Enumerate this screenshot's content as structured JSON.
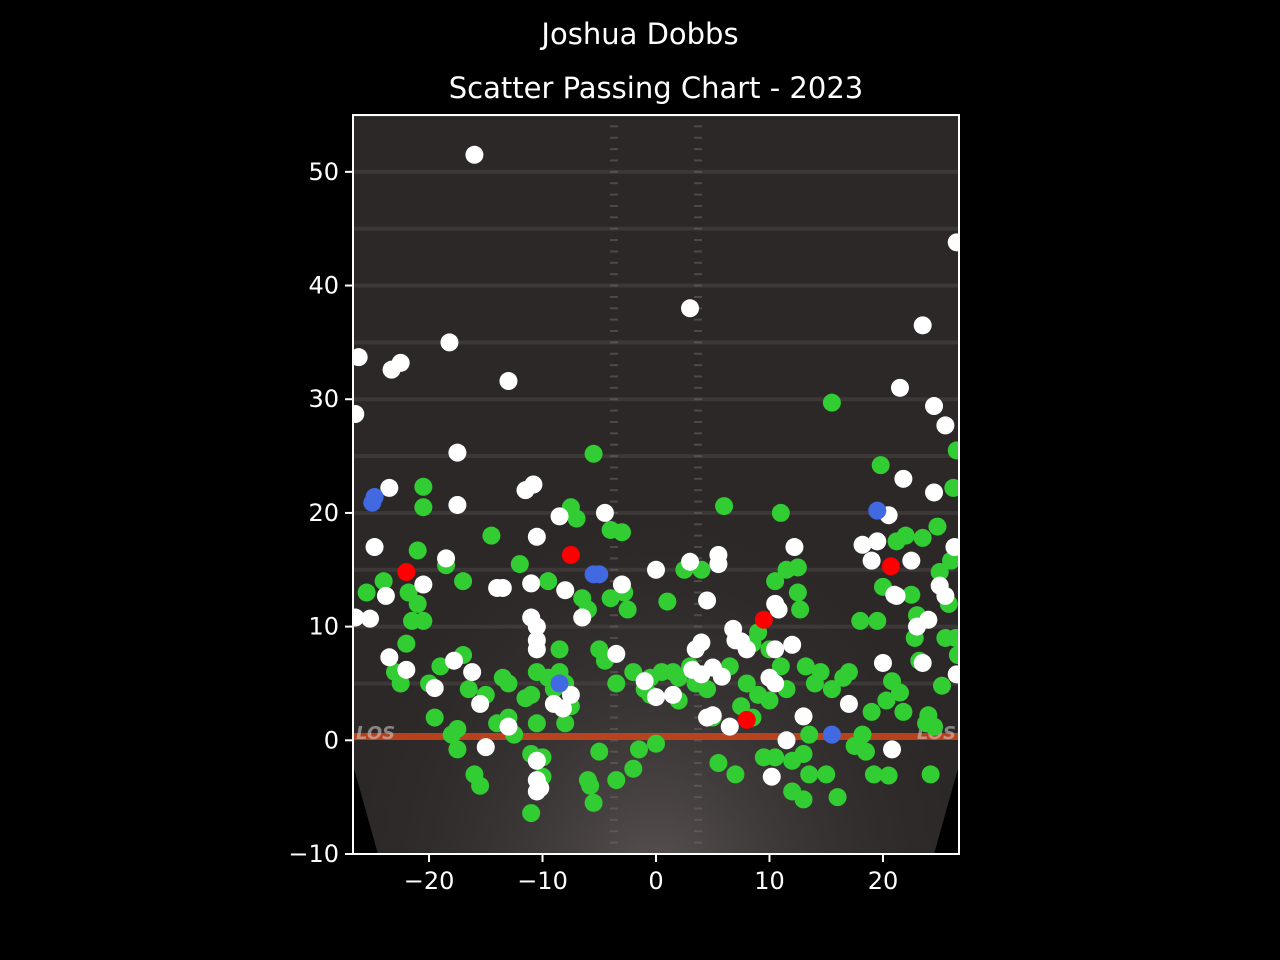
{
  "header": {
    "suptitle": "Joshua Dobbs",
    "title": "Scatter Passing Chart - 2023"
  },
  "chart_data": {
    "type": "scatter",
    "title": "Scatter Passing Chart - 2023",
    "xlabel": "",
    "ylabel": "",
    "xlim": [
      -26.7,
      26.7
    ],
    "ylim": [
      -10,
      55
    ],
    "x_ticks": [
      -20,
      -10,
      0,
      10,
      20
    ],
    "y_ticks": [
      -10,
      0,
      10,
      20,
      30,
      40,
      50
    ],
    "grid": false,
    "field_label": "LOS",
    "colors": {
      "complete": "#32cd32",
      "incomplete": "#ffffff",
      "touchdown": "#4169e1",
      "interception": "#ff0000",
      "background": "#000000",
      "field": "#2c2828",
      "los_line": "#d0451b"
    },
    "series": [
      {
        "key": "complete",
        "points": [
          [
            -25.5,
            13
          ],
          [
            -24,
            14
          ],
          [
            -23,
            6
          ],
          [
            -22.5,
            5
          ],
          [
            -22,
            8.5
          ],
          [
            -21.8,
            13
          ],
          [
            -21.5,
            10.5
          ],
          [
            -21,
            12
          ],
          [
            -21,
            16.7
          ],
          [
            -20.5,
            20.5
          ],
          [
            -20.5,
            22.3
          ],
          [
            -20.5,
            10.5
          ],
          [
            -20,
            5
          ],
          [
            -19.5,
            2
          ],
          [
            -19,
            6.5
          ],
          [
            -18.5,
            15.4
          ],
          [
            -18,
            0.5
          ],
          [
            -17.5,
            1
          ],
          [
            -17.5,
            -0.8
          ],
          [
            -17,
            14
          ],
          [
            -17,
            7.5
          ],
          [
            -16.5,
            4.5
          ],
          [
            -16,
            -3
          ],
          [
            -15.5,
            -4
          ],
          [
            -15,
            4
          ],
          [
            -14.5,
            18
          ],
          [
            -14,
            1.5
          ],
          [
            -13.5,
            5.5
          ],
          [
            -13,
            5
          ],
          [
            -13,
            2
          ],
          [
            -12.5,
            0.5
          ],
          [
            -12,
            15.5
          ],
          [
            -11.5,
            3.7
          ],
          [
            -11,
            -1.2
          ],
          [
            -11,
            -6.4
          ],
          [
            -11,
            4
          ],
          [
            -10.5,
            6
          ],
          [
            -10.5,
            1.5
          ],
          [
            -10,
            -1.5
          ],
          [
            -10,
            -3.2
          ],
          [
            -9.5,
            14
          ],
          [
            -9.5,
            5.5
          ],
          [
            -9,
            4.5
          ],
          [
            -8.5,
            8
          ],
          [
            -8.5,
            6
          ],
          [
            -8,
            1.5
          ],
          [
            -8,
            5
          ],
          [
            -7.5,
            20.5
          ],
          [
            -7.5,
            3
          ],
          [
            -7,
            19.5
          ],
          [
            -6.5,
            12.5
          ],
          [
            -6,
            11.5
          ],
          [
            -6,
            -3.5
          ],
          [
            -5.8,
            -4
          ],
          [
            -5.5,
            25.2
          ],
          [
            -5.5,
            -5.5
          ],
          [
            -5,
            -1
          ],
          [
            -5,
            8
          ],
          [
            -4.5,
            7
          ],
          [
            -4,
            18.5
          ],
          [
            -4,
            12.5
          ],
          [
            -3.5,
            5
          ],
          [
            -3.5,
            -3.5
          ],
          [
            -3,
            18.3
          ],
          [
            -2.8,
            13
          ],
          [
            -2.5,
            11.5
          ],
          [
            -2,
            6
          ],
          [
            -2,
            -2.5
          ],
          [
            -1.5,
            -0.8
          ],
          [
            -1,
            4.5
          ],
          [
            -0.5,
            5.5
          ],
          [
            -0.5,
            4
          ],
          [
            0,
            -0.3
          ],
          [
            0.5,
            6
          ],
          [
            1,
            12.2
          ],
          [
            1.5,
            6
          ],
          [
            2,
            5.5
          ],
          [
            2,
            3.5
          ],
          [
            2.5,
            15
          ],
          [
            3,
            6.5
          ],
          [
            3.5,
            5
          ],
          [
            4,
            15
          ],
          [
            4.5,
            4.5
          ],
          [
            5,
            2
          ],
          [
            5.5,
            -2
          ],
          [
            6,
            20.6
          ],
          [
            6.5,
            6.5
          ],
          [
            7,
            -3
          ],
          [
            7.5,
            3
          ],
          [
            8,
            5
          ],
          [
            8.5,
            8.5
          ],
          [
            8.5,
            2
          ],
          [
            9,
            9.5
          ],
          [
            9,
            4
          ],
          [
            9.5,
            -1.5
          ],
          [
            10,
            8
          ],
          [
            10,
            3.5
          ],
          [
            10.5,
            14
          ],
          [
            10.5,
            -1.5
          ],
          [
            11,
            20
          ],
          [
            11,
            6.5
          ],
          [
            11.5,
            15
          ],
          [
            11.5,
            4.5
          ],
          [
            12,
            -4.5
          ],
          [
            12,
            -1.8
          ],
          [
            12.5,
            13
          ],
          [
            12.5,
            15.2
          ],
          [
            12.7,
            11.5
          ],
          [
            13,
            -1.2
          ],
          [
            13,
            -5.2
          ],
          [
            13.2,
            6.5
          ],
          [
            13.5,
            -3
          ],
          [
            13.5,
            0.5
          ],
          [
            14,
            5
          ],
          [
            14.5,
            6
          ],
          [
            15,
            -3
          ],
          [
            15.5,
            29.7
          ],
          [
            15.5,
            4.5
          ],
          [
            16,
            -5
          ],
          [
            16.5,
            5.5
          ],
          [
            17,
            6
          ],
          [
            17.5,
            -0.5
          ],
          [
            18,
            10.5
          ],
          [
            18.2,
            0.5
          ],
          [
            18.5,
            -1
          ],
          [
            19,
            2.5
          ],
          [
            19.2,
            -3
          ],
          [
            19.5,
            10.5
          ],
          [
            19.8,
            24.2
          ],
          [
            20,
            13.5
          ],
          [
            20.3,
            3.5
          ],
          [
            20.5,
            -3.1
          ],
          [
            20.8,
            5.2
          ],
          [
            21.2,
            17.5
          ],
          [
            21.5,
            4.2
          ],
          [
            21.8,
            2.5
          ],
          [
            22,
            18
          ],
          [
            22.5,
            12.8
          ],
          [
            22.8,
            9
          ],
          [
            23,
            11
          ],
          [
            23.2,
            7
          ],
          [
            23.5,
            17.8
          ],
          [
            23.8,
            1.5
          ],
          [
            24,
            2.2
          ],
          [
            24.2,
            -3
          ],
          [
            24.5,
            1.2
          ],
          [
            24.8,
            18.8
          ],
          [
            25,
            14.8
          ],
          [
            25.2,
            4.8
          ],
          [
            25.5,
            9
          ],
          [
            25.8,
            12
          ],
          [
            26,
            15.8
          ],
          [
            26.2,
            22.2
          ],
          [
            26.4,
            9
          ],
          [
            26.5,
            25.5
          ],
          [
            26.6,
            7.5
          ]
        ]
      },
      {
        "key": "incomplete",
        "points": [
          [
            -26.5,
            28.7
          ],
          [
            -26.2,
            33.7
          ],
          [
            -26.5,
            10.8
          ],
          [
            -25.2,
            10.7
          ],
          [
            -24.8,
            17
          ],
          [
            -23.8,
            12.7
          ],
          [
            -23.5,
            22.2
          ],
          [
            -23.5,
            7.3
          ],
          [
            -23.3,
            32.6
          ],
          [
            -22.5,
            33.2
          ],
          [
            -22,
            6.2
          ],
          [
            -20.5,
            13.7
          ],
          [
            -19.5,
            4.6
          ],
          [
            -18.5,
            16
          ],
          [
            -18.2,
            35
          ],
          [
            -17.8,
            7
          ],
          [
            -17.5,
            25.3
          ],
          [
            -17.5,
            20.7
          ],
          [
            -16.2,
            6
          ],
          [
            -16,
            51.5
          ],
          [
            -15.5,
            3.2
          ],
          [
            -15,
            -0.6
          ],
          [
            -14,
            13.4
          ],
          [
            -13.5,
            13.4
          ],
          [
            -13,
            31.6
          ],
          [
            -13,
            1.2
          ],
          [
            -11.5,
            22
          ],
          [
            -11,
            13.8
          ],
          [
            -11,
            10.8
          ],
          [
            -10.8,
            22.5
          ],
          [
            -10.5,
            17.9
          ],
          [
            -10.5,
            -1.8
          ],
          [
            -10.5,
            -3.5
          ],
          [
            -10.5,
            -4.5
          ],
          [
            -10.2,
            -4.2
          ],
          [
            -10.5,
            10
          ],
          [
            -10.5,
            8.8
          ],
          [
            -10.5,
            8
          ],
          [
            -9,
            3.2
          ],
          [
            -8.5,
            19.7
          ],
          [
            -8.2,
            2.8
          ],
          [
            -8,
            13.2
          ],
          [
            -7.5,
            4
          ],
          [
            -6.5,
            10.8
          ],
          [
            -4.5,
            20
          ],
          [
            -3.5,
            7.6
          ],
          [
            -3,
            13.7
          ],
          [
            -1,
            5.2
          ],
          [
            0,
            3.8
          ],
          [
            0,
            15
          ],
          [
            1.5,
            4
          ],
          [
            3,
            15.7
          ],
          [
            3,
            38
          ],
          [
            3.2,
            6.2
          ],
          [
            3.5,
            8
          ],
          [
            4,
            8.6
          ],
          [
            4,
            5.8
          ],
          [
            4.5,
            2
          ],
          [
            4.5,
            12.3
          ],
          [
            5,
            2.2
          ],
          [
            5,
            6.4
          ],
          [
            5.5,
            15.5
          ],
          [
            5.5,
            16.3
          ],
          [
            5.8,
            5.6
          ],
          [
            6.5,
            1.2
          ],
          [
            6.8,
            9.8
          ],
          [
            7,
            8.8
          ],
          [
            7.5,
            8.7
          ],
          [
            8,
            8
          ],
          [
            10,
            5.5
          ],
          [
            10.2,
            -3.2
          ],
          [
            10.5,
            8
          ],
          [
            10.5,
            12
          ],
          [
            10.8,
            11.5
          ],
          [
            10.5,
            5
          ],
          [
            11.5,
            0
          ],
          [
            12,
            8.4
          ],
          [
            12.2,
            17
          ],
          [
            13,
            2.1
          ],
          [
            17,
            3.2
          ],
          [
            18.2,
            17.2
          ],
          [
            19,
            15.8
          ],
          [
            19.5,
            17.5
          ],
          [
            20,
            6.8
          ],
          [
            20.5,
            19.8
          ],
          [
            20.8,
            -0.8
          ],
          [
            21,
            12.8
          ],
          [
            21.2,
            12.7
          ],
          [
            21.5,
            31
          ],
          [
            21.8,
            23
          ],
          [
            22.5,
            15.8
          ],
          [
            23,
            10
          ],
          [
            23.5,
            36.5
          ],
          [
            23.5,
            6.8
          ],
          [
            24,
            10.6
          ],
          [
            24.5,
            29.4
          ],
          [
            24.5,
            21.8
          ],
          [
            25,
            13.6
          ],
          [
            25.5,
            27.7
          ],
          [
            25.5,
            12.7
          ],
          [
            26.3,
            17
          ],
          [
            26.5,
            5.8
          ],
          [
            26.5,
            43.8
          ]
        ]
      },
      {
        "key": "touchdown",
        "points": [
          [
            -25,
            20.9
          ],
          [
            -24.8,
            21.4
          ],
          [
            -8.5,
            5
          ],
          [
            -5.5,
            14.6
          ],
          [
            -5,
            14.6
          ],
          [
            15.5,
            0.5
          ],
          [
            19.5,
            20.2
          ]
        ]
      },
      {
        "key": "interception",
        "points": [
          [
            -22,
            14.8
          ],
          [
            -7.5,
            16.3
          ],
          [
            8,
            1.8
          ],
          [
            9.5,
            10.6
          ],
          [
            20.7,
            15.3
          ]
        ]
      }
    ]
  }
}
